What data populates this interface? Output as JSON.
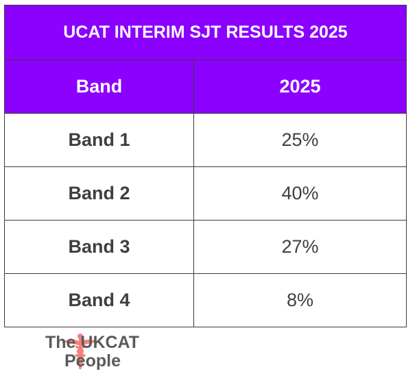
{
  "table": {
    "title": "UCAT INTERIM SJT RESULTS 2025",
    "header": [
      "Band",
      "2025"
    ],
    "rows": [
      [
        "Band 1",
        "25%"
      ],
      [
        "Band 2",
        "40%"
      ],
      [
        "Band 3",
        "27%"
      ],
      [
        "Band 4",
        "8%"
      ]
    ]
  },
  "logo": {
    "line1": "The UKCAT",
    "line2": "People"
  }
}
